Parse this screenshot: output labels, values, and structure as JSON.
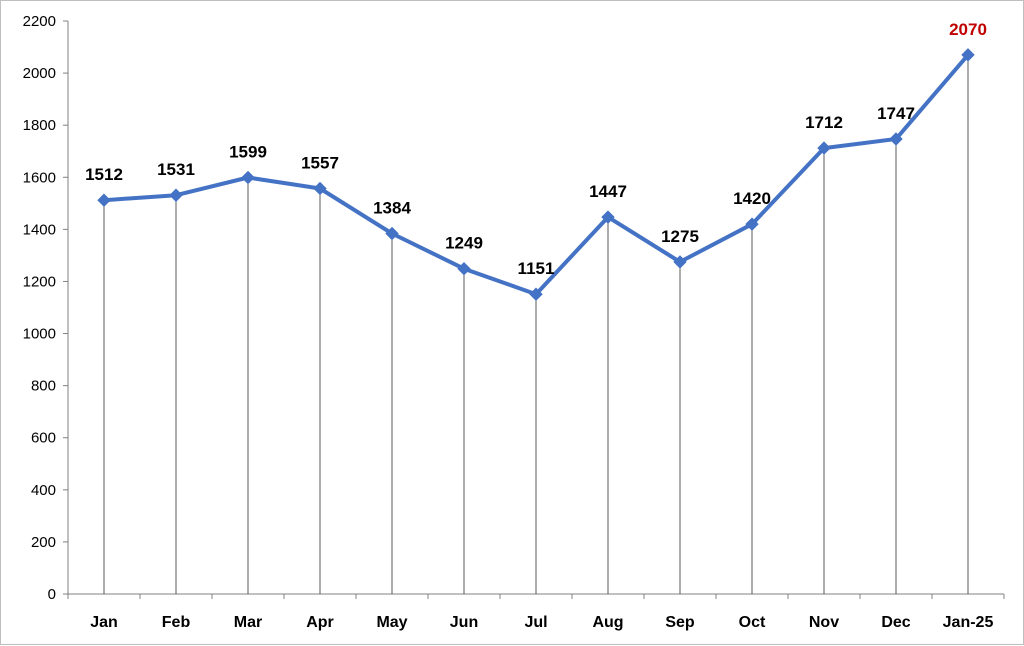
{
  "chart_data": {
    "type": "line",
    "title": "",
    "xlabel": "",
    "ylabel": "",
    "categories": [
      "Jan",
      "Feb",
      "Mar",
      "Apr",
      "May",
      "Jun",
      "Jul",
      "Aug",
      "Sep",
      "Oct",
      "Nov",
      "Dec",
      "Jan-25"
    ],
    "series": [
      {
        "values": [
          1512,
          1531,
          1599,
          1557,
          1384,
          1249,
          1151,
          1447,
          1275,
          1420,
          1712,
          1747,
          2070
        ]
      }
    ],
    "data_labels": [
      "1512",
      "1531",
      "1599",
      "1557",
      "1384",
      "1249",
      "1151",
      "1447",
      "1275",
      "1420",
      "1712",
      "1747",
      "2070"
    ],
    "ylim": [
      0,
      2200
    ],
    "yticks": [
      "0",
      "200",
      "400",
      "600",
      "800",
      "1000",
      "1200",
      "1400",
      "1600",
      "1800",
      "2000",
      "2200"
    ],
    "grid": false,
    "drop_lines": true,
    "marker": "diamond",
    "highlighted_index": 12,
    "colors": {
      "line": "#4472C4",
      "marker": "#4472C4",
      "drop_line": "#595959",
      "axis": "#808080",
      "label": "#000000",
      "highlight_label": "#C00000"
    }
  }
}
